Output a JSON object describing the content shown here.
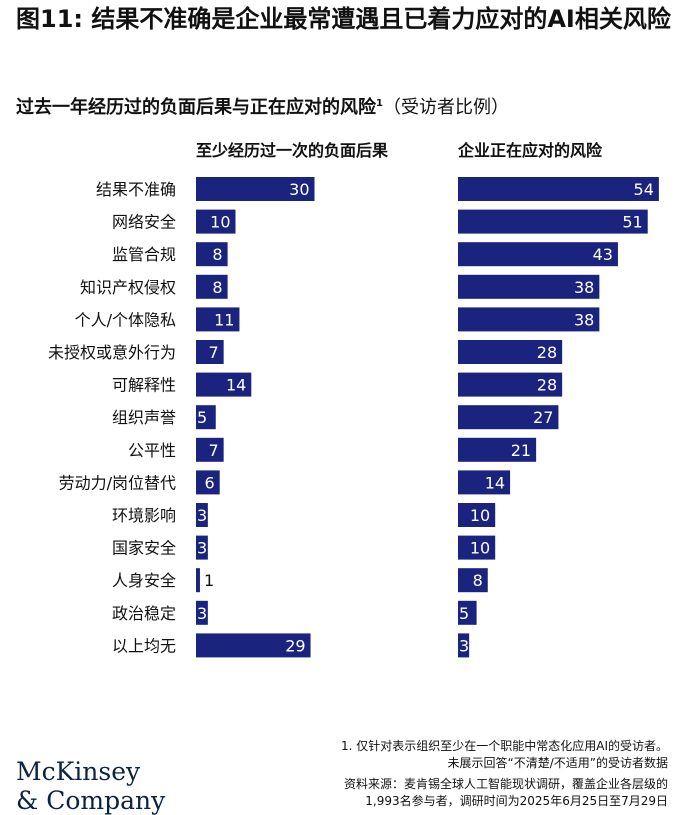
{
  "title": "图11: 结果不准确是企业最常遭遇且已着力应对的AI相关风险",
  "subtitle": "过去一年经历过的负面后果与正在应对的风险",
  "subtitle_sup": "1",
  "subtitle_note": "（受访者比例）",
  "footnote": {
    "line1": "1.  仅针对表示组织至少在一个职能中常态化应用AI的受访者。",
    "line2": "未展示回答“不清楚/不适用”的受访者数据"
  },
  "source": {
    "line1": "资料来源：麦肯锡全球人工智能现状调研，覆盖企业各层级的",
    "line2": "1,993名参与者，调研时间为2025年6月25日至7月29日"
  },
  "logo": {
    "line1": "McKinsey",
    "line2": "& Company"
  },
  "colors": {
    "bar": "#1a237e",
    "label_inside": "#ffffff",
    "label_outside": "#111111"
  },
  "chart_data": {
    "type": "bar",
    "orientation": "horizontal",
    "categories": [
      "结果不准确",
      "网络安全",
      "监管合规",
      "知识产权侵权",
      "个人/个体隐私",
      "未授权或意外行为",
      "可解释性",
      "组织声誉",
      "公平性",
      "劳动力/岗位替代",
      "环境影响",
      "国家安全",
      "人身安全",
      "政治稳定",
      "以上均无"
    ],
    "series": [
      {
        "name": "至少经历过一次的负面后果",
        "values": [
          30,
          10,
          8,
          8,
          11,
          7,
          14,
          5,
          7,
          6,
          3,
          3,
          1,
          3,
          29
        ]
      },
      {
        "name": "企业正在应对的风险",
        "values": [
          54,
          51,
          43,
          38,
          38,
          28,
          28,
          27,
          21,
          14,
          10,
          10,
          8,
          5,
          3
        ]
      }
    ],
    "unit": "%"
  }
}
